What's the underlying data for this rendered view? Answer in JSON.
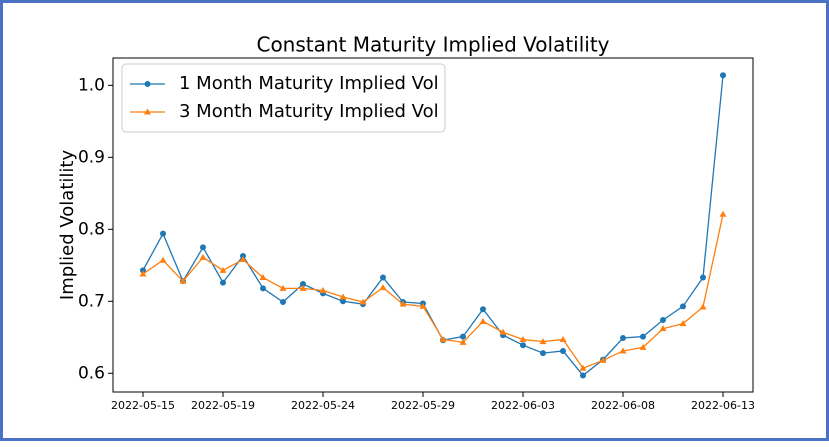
{
  "chart_data": {
    "type": "line",
    "title": "Constant Maturity Implied Volatility",
    "y_label": "Implied Volatility",
    "x": [
      "2022-05-15",
      "2022-05-16",
      "2022-05-17",
      "2022-05-18",
      "2022-05-19",
      "2022-05-20",
      "2022-05-21",
      "2022-05-22",
      "2022-05-23",
      "2022-05-24",
      "2022-05-25",
      "2022-05-26",
      "2022-05-27",
      "2022-05-28",
      "2022-05-29",
      "2022-05-30",
      "2022-05-31",
      "2022-06-01",
      "2022-06-02",
      "2022-06-03",
      "2022-06-04",
      "2022-06-05",
      "2022-06-06",
      "2022-06-07",
      "2022-06-08",
      "2022-06-09",
      "2022-06-10",
      "2022-06-11",
      "2022-06-12",
      "2022-06-13"
    ],
    "series": [
      {
        "name": "1 Month Maturity Implied Vol",
        "color": "#1f77b4",
        "marker": "circle",
        "values": [
          0.743,
          0.794,
          0.728,
          0.775,
          0.726,
          0.763,
          0.718,
          0.699,
          0.724,
          0.711,
          0.7,
          0.696,
          0.733,
          0.699,
          0.697,
          0.646,
          0.651,
          0.689,
          0.653,
          0.639,
          0.628,
          0.631,
          0.597,
          0.619,
          0.649,
          0.651,
          0.674,
          0.693,
          0.733,
          1.014
        ]
      },
      {
        "name": "3 Month Maturity Implied Vol",
        "color": "#ff7f0e",
        "marker": "triangle",
        "values": [
          0.738,
          0.757,
          0.728,
          0.761,
          0.743,
          0.758,
          0.733,
          0.718,
          0.718,
          0.715,
          0.706,
          0.699,
          0.719,
          0.696,
          0.693,
          0.647,
          0.643,
          0.672,
          0.657,
          0.647,
          0.644,
          0.647,
          0.607,
          0.618,
          0.631,
          0.636,
          0.662,
          0.669,
          0.692,
          0.821
        ]
      }
    ],
    "xlim": [
      "2022-05-13T12:00:00Z",
      "2022-06-14T12:00:00Z"
    ],
    "xticks": [
      "2022-05-15",
      "2022-05-19",
      "2022-05-24",
      "2022-05-29",
      "2022-06-03",
      "2022-06-08",
      "2022-06-13"
    ],
    "ylim": [
      0.574,
      1.038
    ],
    "yticks": [
      0.6,
      0.7,
      0.8,
      0.9,
      {
        "value": 1,
        "label": "1.0"
      }
    ],
    "grid": false,
    "legend": "upper-left"
  }
}
